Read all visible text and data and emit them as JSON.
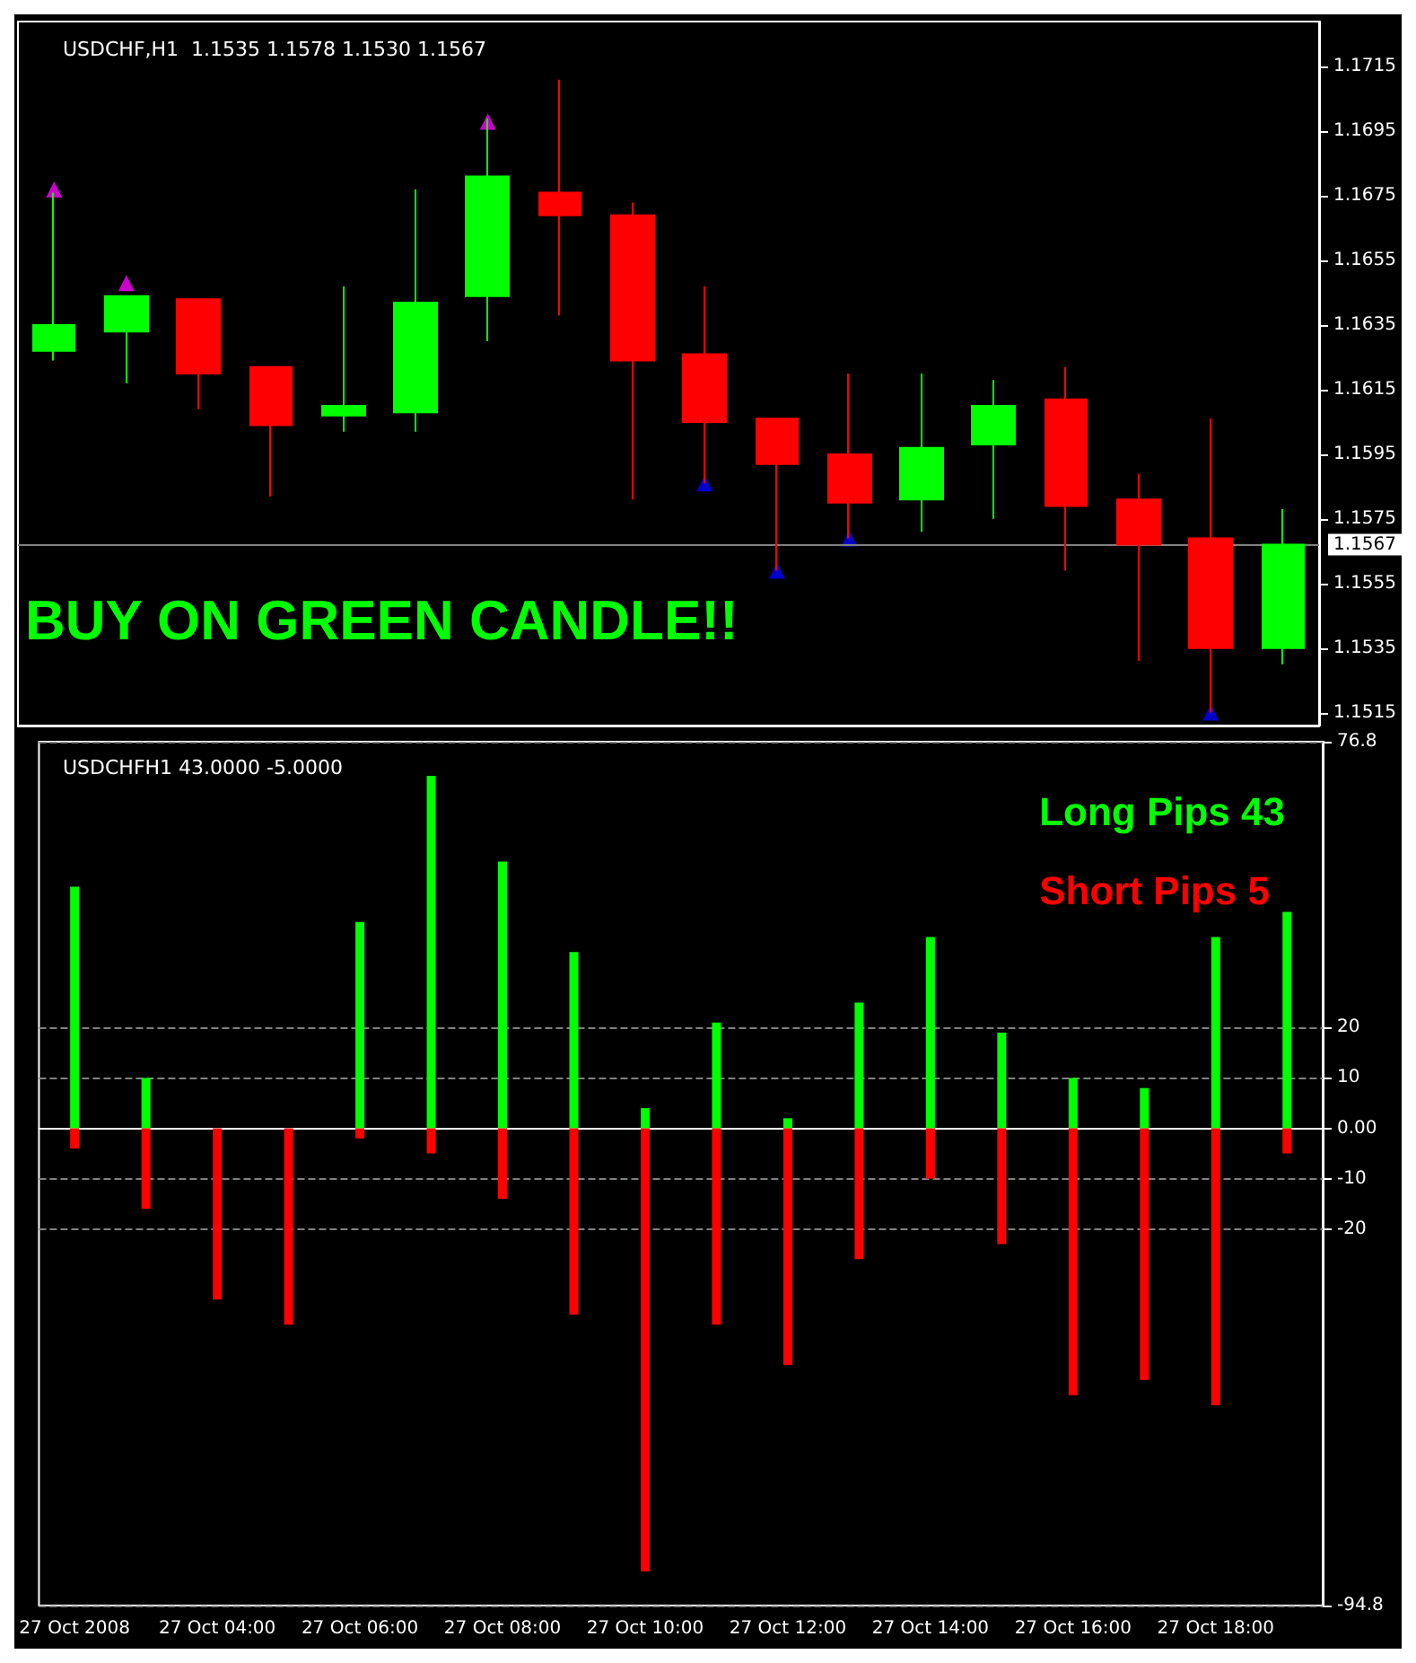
{
  "chart_data": [
    {
      "type": "candlestick",
      "title": "USDCHF,H1  1.1535 1.1578 1.1530 1.1567",
      "categories": [
        null,
        null,
        null,
        null,
        null,
        null,
        null,
        null,
        null,
        null,
        null,
        null,
        null,
        null,
        null,
        null,
        null,
        null
      ],
      "ohlc": [
        [
          1.1627,
          1.1676,
          1.1624,
          1.1635
        ],
        [
          1.1633,
          1.1644,
          1.1617,
          1.1644
        ],
        [
          1.1643,
          1.1643,
          1.1609,
          1.162
        ],
        [
          1.1622,
          1.1622,
          1.1582,
          1.1604
        ],
        [
          1.1607,
          1.1647,
          1.1602,
          1.161
        ],
        [
          1.1608,
          1.1677,
          1.1602,
          1.1642
        ],
        [
          1.1644,
          1.1699,
          1.163,
          1.1681
        ],
        [
          1.1676,
          1.1711,
          1.1638,
          1.1669
        ],
        [
          1.1669,
          1.1673,
          1.1581,
          1.1624
        ],
        [
          1.1626,
          1.1647,
          1.1586,
          1.1605
        ],
        [
          1.1606,
          1.1606,
          1.1559,
          1.1592
        ],
        [
          1.1595,
          1.162,
          1.1569,
          1.158
        ],
        [
          1.1581,
          1.162,
          1.1571,
          1.1597
        ],
        [
          1.1598,
          1.1618,
          1.1575,
          1.161
        ],
        [
          1.1612,
          1.1622,
          1.1559,
          1.1579
        ],
        [
          1.1581,
          1.1589,
          1.1531,
          1.1567
        ],
        [
          1.1569,
          1.1606,
          1.1515,
          1.1535
        ],
        [
          1.1535,
          1.1578,
          1.153,
          1.1567
        ]
      ],
      "colors": [
        "#00ff00",
        "#00ff00",
        "#ff0000",
        "#ff0000",
        "#00ff00",
        "#00ff00",
        "#00ff00",
        "#ff0000",
        "#ff0000",
        "#ff0000",
        "#ff0000",
        "#ff0000",
        "#00ff00",
        "#00ff00",
        "#ff0000",
        "#ff0000",
        "#ff0000",
        "#00ff00"
      ],
      "series": [
        {
          "type": "scatter",
          "color": "#ff00ff",
          "values": [
            1.1677,
            1.1648,
            null,
            null,
            null,
            null,
            1.1698,
            null,
            null,
            null,
            null,
            null,
            null,
            null,
            null,
            null,
            null,
            null
          ]
        },
        {
          "type": "scatter",
          "color": "#0000ff",
          "values": [
            null,
            null,
            null,
            null,
            null,
            null,
            null,
            null,
            null,
            1.1586,
            1.1559,
            1.1569,
            null,
            null,
            null,
            null,
            1.1515,
            null
          ]
        }
      ],
      "marker": "triangle",
      "ylim": [
        1.1511,
        1.1729
      ],
      "yticks": [
        1.1515,
        1.1535,
        1.1555,
        1.1575,
        1.1595,
        1.1615,
        1.1635,
        1.1655,
        1.1675,
        1.1695,
        1.1715
      ],
      "ref_lines": [
        {
          "axis": "y",
          "value": 1.1567,
          "label": "1.1567",
          "color": "#808080"
        }
      ],
      "annotations": [
        "BUY ON GREEN CANDLE!!"
      ],
      "tick_labels": "y"
    },
    {
      "type": "bar",
      "title": "USDCHFH1 43.0000 -5.0000",
      "categories": [
        "27 Oct 2008",
        null,
        "27 Oct 04:00",
        null,
        "27 Oct 06:00",
        null,
        "27 Oct 08:00",
        null,
        "27 Oct 10:00",
        null,
        "27 Oct 12:00",
        null,
        "27 Oct 14:00",
        null,
        "27 Oct 16:00",
        null,
        "27 Oct 18:00",
        null
      ],
      "stacked": true,
      "series": [
        {
          "name": "Long Pips 43",
          "color": "#00ff00",
          "values": [
            48,
            10,
            0,
            0,
            41,
            70,
            53,
            35,
            4,
            21,
            2,
            25,
            38,
            19,
            10,
            8,
            38,
            43
          ]
        },
        {
          "name": "Short Pips 5",
          "color": "#ff0000",
          "values": [
            -4,
            -16,
            -34,
            -39,
            -2,
            -5,
            -14,
            -37,
            -88,
            -39,
            -47,
            -26,
            -10,
            -23,
            -53,
            -50,
            -55,
            -5
          ]
        }
      ],
      "ylim": [
        -94.8,
        76.8
      ],
      "yticks": [
        -94.8,
        -20,
        -10,
        {
          "value": 0,
          "label": "0.00"
        },
        10,
        20,
        76.8
      ],
      "grid": "y",
      "legend": "top right"
    }
  ]
}
